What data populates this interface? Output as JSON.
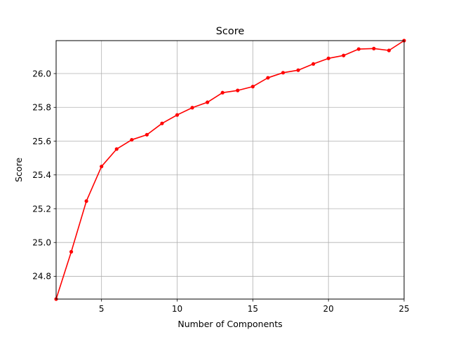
{
  "chart_data": {
    "type": "line",
    "title": "Score",
    "xlabel": "Number of Components",
    "ylabel": "Score",
    "xlim": [
      2,
      25
    ],
    "ylim": [
      24.665,
      26.195
    ],
    "grid": true,
    "x_ticks": [
      5,
      10,
      15,
      20,
      25
    ],
    "y_ticks": [
      24.8,
      25.0,
      25.2,
      25.4,
      25.6,
      25.8,
      26.0
    ],
    "x_tick_labels": [
      "5",
      "10",
      "15",
      "20",
      "25"
    ],
    "y_tick_labels": [
      "24.8",
      "25.0",
      "25.2",
      "25.4",
      "25.6",
      "25.8",
      "26.0"
    ],
    "series": [
      {
        "color": "#ff0000",
        "marker": "circle",
        "x": [
          2,
          3,
          4,
          5,
          6,
          7,
          8,
          9,
          10,
          11,
          12,
          13,
          14,
          15,
          16,
          17,
          18,
          19,
          20,
          21,
          22,
          23,
          24,
          25
        ],
        "y": [
          24.665,
          24.945,
          25.245,
          25.45,
          25.553,
          25.608,
          25.638,
          25.705,
          25.755,
          25.798,
          25.83,
          25.887,
          25.9,
          25.923,
          25.975,
          26.005,
          26.02,
          26.057,
          26.09,
          26.107,
          26.145,
          26.148,
          26.137,
          26.195
        ]
      }
    ]
  }
}
